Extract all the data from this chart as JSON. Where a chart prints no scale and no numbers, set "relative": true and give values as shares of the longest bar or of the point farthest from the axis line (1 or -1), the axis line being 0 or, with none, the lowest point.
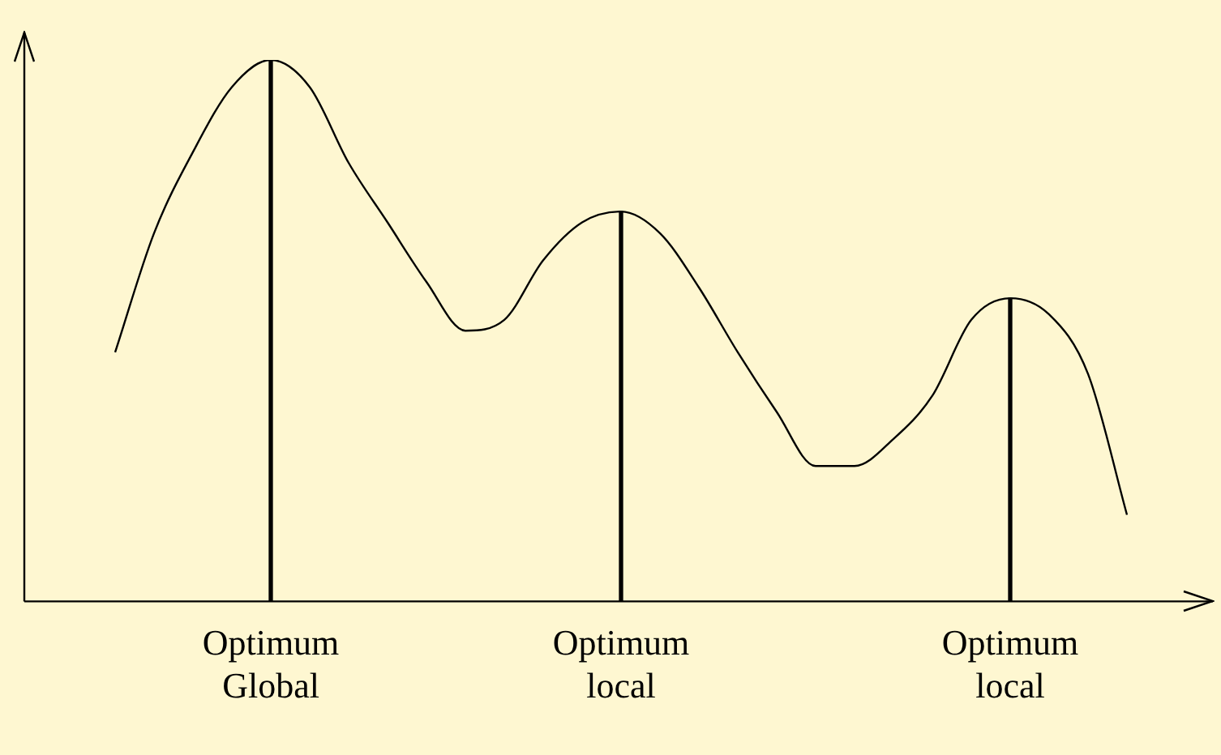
{
  "chart_data": {
    "type": "line",
    "relative": true,
    "grid": false,
    "legend": false,
    "marker": "none",
    "categories": [
      null,
      null,
      null,
      null,
      "Optimum Global",
      null,
      null,
      null,
      null,
      null,
      null,
      null,
      null,
      "Optimum local",
      null,
      null,
      null,
      null,
      null,
      null,
      null,
      null,
      null,
      "Optimum local",
      null,
      null,
      null
    ],
    "series": [
      {
        "color": "#000000",
        "values": [
          0.46,
          0.68,
          0.83,
          0.95,
          1,
          0.95,
          0.81,
          0.7,
          0.59,
          0.5,
          0.52,
          0.63,
          0.7,
          0.72,
          0.68,
          0.58,
          0.46,
          0.35,
          0.25,
          0.25,
          0.3,
          0.38,
          0.52,
          0.56,
          0.53,
          0.42,
          0.16
        ]
      },
      {
        "type": "bar",
        "color": "#000000",
        "values": [
          null,
          null,
          null,
          null,
          1,
          null,
          null,
          null,
          null,
          null,
          null,
          null,
          null,
          0.72,
          null,
          null,
          null,
          null,
          null,
          null,
          null,
          null,
          null,
          0.56,
          null,
          null,
          null
        ]
      }
    ]
  }
}
